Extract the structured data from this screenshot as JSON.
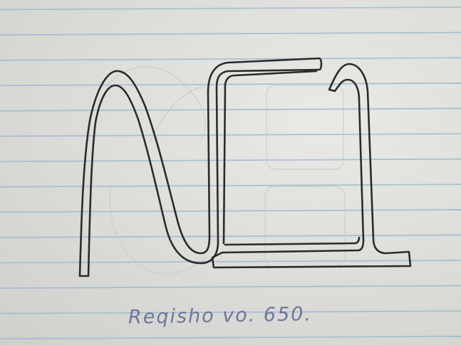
{
  "photo": {
    "kind": "photograph",
    "paper": "lined-notebook-paper",
    "caption": "Reqisho vo. 650."
  },
  "colors": {
    "paper": "#dedfdb",
    "rule_line": "#9cb4d4",
    "pencil": "#2b2b2b",
    "ink": "#5c6793"
  }
}
